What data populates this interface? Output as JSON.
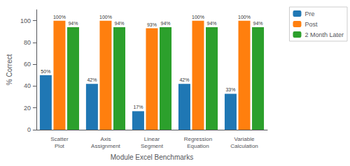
{
  "chart_data": {
    "type": "bar",
    "xlabel": "Module Excel Benchmarks",
    "ylabel": "% Correct",
    "categories": [
      "Scatter\nPlot",
      "Axis\nAssignment",
      "Linear\nSegment",
      "Regression\nEquation",
      "Variable\nCalculation"
    ],
    "series": [
      {
        "name": "Pre",
        "color": "#1f77b4",
        "values": [
          50,
          42,
          17,
          42,
          33
        ],
        "value_labels": [
          "50%",
          "42%",
          "17%",
          "42%",
          "33%"
        ]
      },
      {
        "name": "Post",
        "color": "#ff7f0e",
        "values": [
          100,
          100,
          93,
          100,
          100
        ],
        "value_labels": [
          "100%",
          "100%",
          "93%",
          "100%",
          "100%"
        ]
      },
      {
        "name": "2 Month Later",
        "color": "#2ca02c",
        "values": [
          94,
          94,
          94,
          94,
          94
        ],
        "value_labels": [
          "94%",
          "94%",
          "94%",
          "94%",
          "94%"
        ]
      }
    ],
    "ylim": [
      0,
      110
    ],
    "yticks": [
      0,
      20,
      40,
      60,
      80,
      100
    ],
    "grid": false,
    "legend": "upper right",
    "data_labels": true
  }
}
